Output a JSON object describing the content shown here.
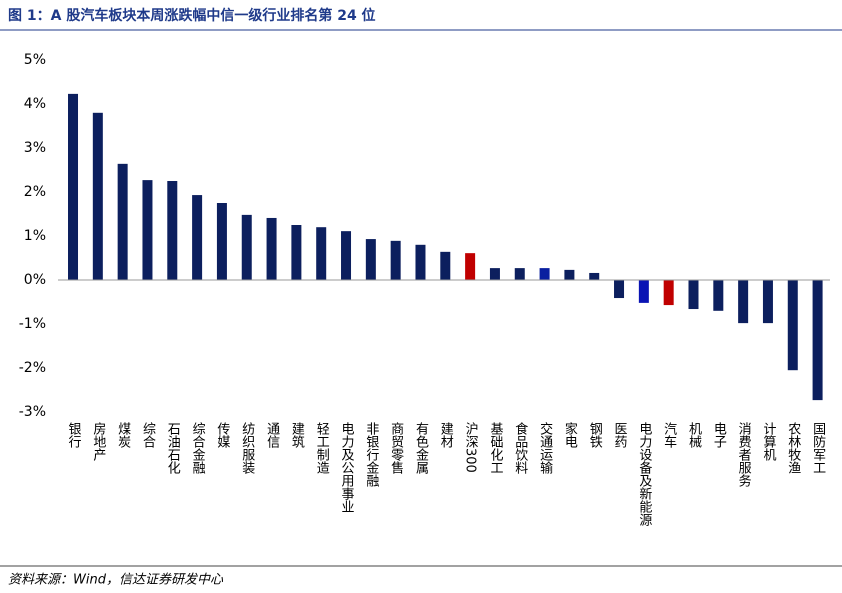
{
  "chart_data": {
    "type": "bar",
    "title": "图 1：A 股汽车板块本周涨跌幅中信一级行业排名第 24 位",
    "source": "资料来源：Wind，信达证券研发中心",
    "categories": [
      "银行",
      "房地产",
      "煤炭",
      "综合",
      "石油石化",
      "综合金融",
      "传媒",
      "纺织服装",
      "通信",
      "建筑",
      "轻工制造",
      "电力及公用事业",
      "非银行金融",
      "商贸零售",
      "有色金属",
      "建材",
      "沪深300",
      "基础化工",
      "食品饮料",
      "交通运输",
      "家电",
      "钢铁",
      "医药",
      "电力设备及新能源",
      "汽车",
      "机械",
      "电子",
      "消费者服务",
      "计算机",
      "农林牧渔",
      "国防军工"
    ],
    "values": [
      4.23,
      3.8,
      2.64,
      2.27,
      2.25,
      1.93,
      1.75,
      1.48,
      1.41,
      1.25,
      1.2,
      1.11,
      0.93,
      0.89,
      0.8,
      0.64,
      0.61,
      0.27,
      0.27,
      0.27,
      0.23,
      0.16,
      -0.41,
      -0.52,
      -0.57,
      -0.66,
      -0.7,
      -0.98,
      -0.98,
      -2.05,
      -2.73
    ],
    "colors": [
      "#0c1f5e",
      "#0c1f5e",
      "#0c1f5e",
      "#0c1f5e",
      "#0c1f5e",
      "#0c1f5e",
      "#0c1f5e",
      "#0c1f5e",
      "#0c1f5e",
      "#0c1f5e",
      "#0c1f5e",
      "#0c1f5e",
      "#0c1f5e",
      "#0c1f5e",
      "#0c1f5e",
      "#0c1f5e",
      "#c00000",
      "#0c1f5e",
      "#0c1f5e",
      "#0a1fa0",
      "#0c1f5e",
      "#0c1f5e",
      "#0c1f5e",
      "#0a14b4",
      "#c00000",
      "#0c1f5e",
      "#0c1f5e",
      "#0c1f5e",
      "#0c1f5e",
      "#0c1f5e",
      "#0c1f5e"
    ],
    "ylim": [
      -3,
      5
    ],
    "yticks": [
      {
        "value": -3,
        "label": "-3%"
      },
      {
        "value": -2,
        "label": "-2%"
      },
      {
        "value": -1,
        "label": "-1%"
      },
      {
        "value": 0,
        "label": "0%"
      },
      {
        "value": 1,
        "label": "1%"
      },
      {
        "value": 2,
        "label": "2%"
      },
      {
        "value": 3,
        "label": "3%"
      },
      {
        "value": 4,
        "label": "4%"
      },
      {
        "value": 5,
        "label": "5%"
      }
    ]
  }
}
